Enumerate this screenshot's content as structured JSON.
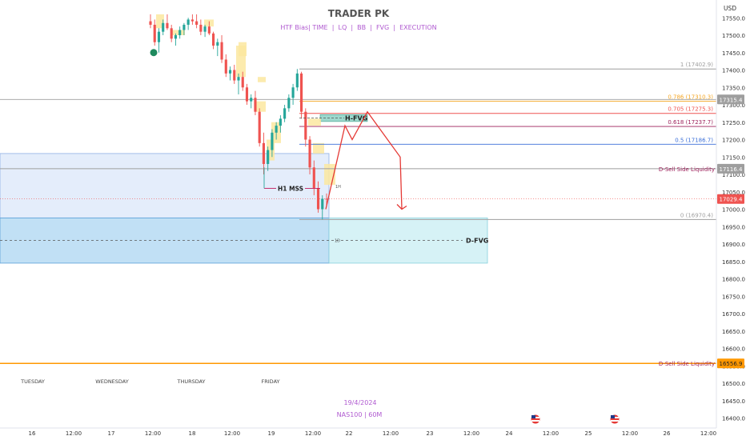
{
  "header": {
    "title": "TRADER PK",
    "subtitle": "HTF Bias| TIME  |  LQ  |  BB  |  FVG  |  EXECUTION",
    "currency": "USD"
  },
  "footer": {
    "date": "19/4/2024",
    "symbol": "NAS100 | 60M"
  },
  "colors": {
    "bull": "#26a69a",
    "bear": "#ef5350",
    "fvg_blue": "#9fd0f0",
    "hfvg": "#74c7b8",
    "fvg_yellow": "#fbe7a0",
    "arrow": "#e53935",
    "liquidity": "#ff9800"
  },
  "chart_data": {
    "type": "candlestick",
    "y_axis": {
      "min": 16400,
      "max": 17550,
      "ticks": [
        17500,
        17450,
        17400,
        17350,
        17300,
        17250,
        17200,
        17150,
        17100,
        17050,
        17000,
        16950,
        16900,
        16850,
        16800,
        16750,
        16700,
        16650,
        16600,
        16550,
        16500,
        16450,
        16400
      ],
      "tick_labels": [
        "17500.0",
        "17450.0",
        "17400.0",
        "17350.0",
        "17300.0",
        "17250.0",
        "17200.0",
        "17150.0",
        "17100.0",
        "17050.0",
        "17000.0",
        "16950.0",
        "16900.0",
        "16850.0",
        "16800.0",
        "16750.0",
        "16700.0",
        "16650.0",
        "16600.0",
        "16550.0",
        "16500.0",
        "16450.0",
        "16400.0"
      ],
      "top_partial": "17550.0"
    },
    "x_axis": {
      "labels": [
        "16",
        "12:00",
        "17",
        "12:00",
        "18",
        "12:00",
        "19",
        "12:00",
        "22",
        "12:00",
        "23",
        "12:00",
        "24",
        "12:00",
        "25",
        "12:00",
        "26",
        "12:00"
      ],
      "day_names": [
        "TUESDAY",
        "WEDNESDAY",
        "THURSDAY",
        "FRIDAY"
      ]
    },
    "candles_ohlc": [
      [
        17540,
        17560,
        17520,
        17530
      ],
      [
        17530,
        17545,
        17470,
        17480
      ],
      [
        17480,
        17520,
        17450,
        17510
      ],
      [
        17510,
        17545,
        17500,
        17535
      ],
      [
        17535,
        17560,
        17515,
        17520
      ],
      [
        17520,
        17530,
        17480,
        17490
      ],
      [
        17490,
        17505,
        17470,
        17500
      ],
      [
        17500,
        17525,
        17490,
        17515
      ],
      [
        17515,
        17535,
        17500,
        17530
      ],
      [
        17530,
        17550,
        17515,
        17545
      ],
      [
        17545,
        17560,
        17530,
        17540
      ],
      [
        17540,
        17560,
        17520,
        17530
      ],
      [
        17530,
        17545,
        17500,
        17510
      ],
      [
        17510,
        17530,
        17495,
        17525
      ],
      [
        17525,
        17540,
        17500,
        17505
      ],
      [
        17505,
        17510,
        17460,
        17470
      ],
      [
        17470,
        17490,
        17440,
        17480
      ],
      [
        17480,
        17500,
        17420,
        17430
      ],
      [
        17430,
        17445,
        17380,
        17390
      ],
      [
        17390,
        17410,
        17370,
        17400
      ],
      [
        17400,
        17415,
        17360,
        17370
      ],
      [
        17370,
        17390,
        17330,
        17380
      ],
      [
        17380,
        17395,
        17340,
        17350
      ],
      [
        17350,
        17360,
        17300,
        17310
      ],
      [
        17310,
        17330,
        17290,
        17320
      ],
      [
        17320,
        17340,
        17270,
        17280
      ],
      [
        17280,
        17290,
        17180,
        17190
      ],
      [
        17190,
        17220,
        17100,
        17130
      ],
      [
        17130,
        17180,
        17110,
        17170
      ],
      [
        17170,
        17230,
        17150,
        17220
      ],
      [
        17220,
        17250,
        17200,
        17240
      ],
      [
        17240,
        17270,
        17220,
        17260
      ],
      [
        17260,
        17300,
        17250,
        17290
      ],
      [
        17290,
        17330,
        17280,
        17320
      ],
      [
        17320,
        17360,
        17300,
        17350
      ],
      [
        17350,
        17402.9,
        17340,
        17390
      ],
      [
        17390,
        17395,
        17260,
        17280
      ],
      [
        17280,
        17290,
        17180,
        17200
      ],
      [
        17200,
        17210,
        17100,
        17120
      ],
      [
        17120,
        17140,
        17040,
        17060
      ],
      [
        17060,
        17080,
        16990,
        17000
      ],
      [
        17000,
        17040,
        16970.4,
        17030
      ],
      [
        17030,
        17045,
        17010,
        17029.4
      ]
    ],
    "fib_levels": [
      {
        "label": "1 (17402.9)",
        "value": 17402.9,
        "color": "#9e9e9e"
      },
      {
        "label": "0.786 (17310.3)",
        "value": 17310.3,
        "color": "#f5a623"
      },
      {
        "label": "0.705 (17275.3)",
        "value": 17275.3,
        "color": "#ef5350"
      },
      {
        "label": "0.618 (17237.7)",
        "value": 17237.7,
        "color": "#9c1f5a"
      },
      {
        "label": "0.5 (17186.7)",
        "value": 17186.7,
        "color": "#3b6fd8"
      },
      {
        "label": "0 (16970.4)",
        "value": 16970.4,
        "color": "#9e9e9e"
      }
    ],
    "zones": [
      {
        "label": "H-FVG",
        "top": 17272,
        "bottom": 17252
      },
      {
        "label": "D-FVG",
        "top": 16975,
        "bottom": 16845
      },
      {
        "label": "",
        "top": 17160,
        "bottom": 16975
      }
    ],
    "annotations": {
      "mss_label": "H1 MSS",
      "mss_value": 17060,
      "small_label_1h": "1H",
      "small_label_1d": "1D",
      "liquidity_1": {
        "label": "D-Sell Side Liquidity",
        "value": 17116.4
      },
      "liquidity_2": {
        "label": "D-Sell Side Liquidity",
        "value": 16556.9
      }
    },
    "price_tags": [
      {
        "text": "17315.4",
        "value": 17315.4,
        "style": "gray"
      },
      {
        "text": "17116.4",
        "value": 17116.4,
        "style": "gray"
      },
      {
        "text": "17029.4",
        "value": 17029.4,
        "style": "red"
      },
      {
        "text": "16556.9",
        "value": 16556.9,
        "style": "orange"
      }
    ],
    "projection_path": [
      17000,
      17240,
      17200,
      17280,
      17150,
      17000
    ]
  }
}
